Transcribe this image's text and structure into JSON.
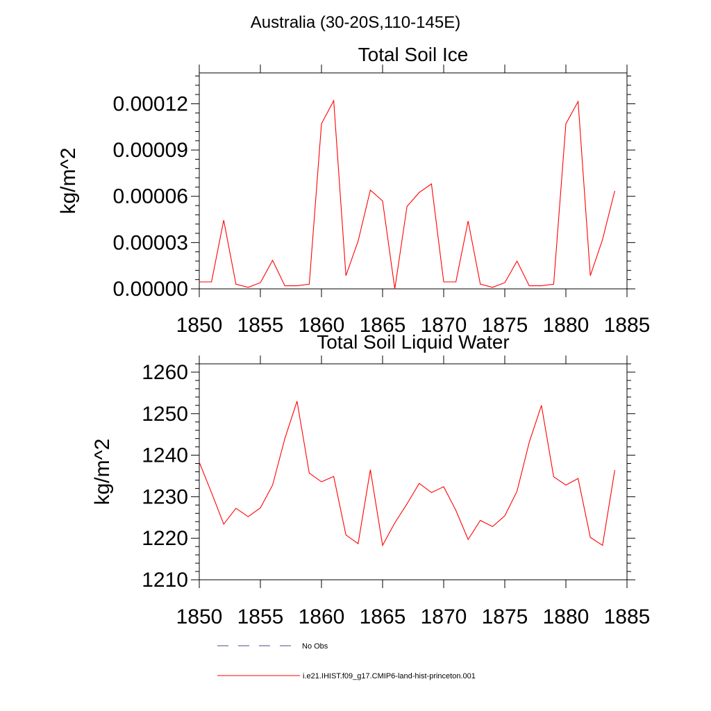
{
  "figure": {
    "title": "Australia (30-20S,110-145E)"
  },
  "chart_data": [
    {
      "type": "line",
      "title": "Total Soil Ice",
      "ylabel": "kg/m^2",
      "xlabel": "",
      "xlim": [
        1850,
        1885
      ],
      "ylim": [
        0,
        0.00014
      ],
      "xticks": [
        1850,
        1855,
        1860,
        1865,
        1870,
        1875,
        1880,
        1885
      ],
      "xtick_labels": [
        "1850",
        "1855",
        "1860",
        "1865",
        "1870",
        "1875",
        "1880",
        "1885"
      ],
      "yticks": [
        0,
        3e-05,
        6e-05,
        9e-05,
        0.00012
      ],
      "ytick_labels": [
        "0.00000",
        "0.00003",
        "0.00006",
        "0.00009",
        "0.00012"
      ],
      "grid": false,
      "series": [
        {
          "name": "i.e21.IHIST.f09_g17.CMIP6-land-hist-princeton.001",
          "color": "#ff0000",
          "x": [
            1850,
            1851,
            1852,
            1853,
            1854,
            1855,
            1856,
            1857,
            1858,
            1859,
            1860,
            1861,
            1862,
            1863,
            1864,
            1865,
            1866,
            1867,
            1868,
            1869,
            1870,
            1871,
            1872,
            1873,
            1874,
            1875,
            1876,
            1877,
            1878,
            1879,
            1880,
            1881,
            1882,
            1883,
            1884
          ],
          "y": [
            4.5e-06,
            4.5e-06,
            4.45e-05,
            3e-06,
            1e-06,
            4e-06,
            1.85e-05,
            2e-06,
            2e-06,
            3e-06,
            0.000107,
            0.000122,
            8.5e-06,
            3.1e-05,
            6.4e-05,
            5.7e-05,
            0.0,
            5.35e-05,
            6.25e-05,
            6.8e-05,
            4.5e-06,
            4.5e-06,
            4.4e-05,
            3e-06,
            1e-06,
            4e-06,
            1.8e-05,
            2e-06,
            2e-06,
            3e-06,
            0.000107,
            0.0001215,
            8.5e-06,
            3.2e-05,
            6.35e-05
          ]
        }
      ]
    },
    {
      "type": "line",
      "title": "Total Soil Liquid Water",
      "ylabel": "kg/m^2",
      "xlabel": "",
      "xlim": [
        1850,
        1885
      ],
      "ylim": [
        1210,
        1262
      ],
      "xticks": [
        1850,
        1855,
        1860,
        1865,
        1870,
        1875,
        1880,
        1885
      ],
      "xtick_labels": [
        "1850",
        "1855",
        "1860",
        "1865",
        "1870",
        "1875",
        "1880",
        "1885"
      ],
      "yticks": [
        1210,
        1220,
        1230,
        1240,
        1250,
        1260
      ],
      "ytick_labels": [
        "1210",
        "1220",
        "1230",
        "1240",
        "1250",
        "1260"
      ],
      "grid": false,
      "series": [
        {
          "name": "i.e21.IHIST.f09_g17.CMIP6-land-hist-princeton.001",
          "color": "#ff0000",
          "x": [
            1850,
            1851,
            1852,
            1853,
            1854,
            1855,
            1856,
            1857,
            1858,
            1859,
            1860,
            1861,
            1862,
            1863,
            1864,
            1865,
            1866,
            1867,
            1868,
            1869,
            1870,
            1871,
            1872,
            1873,
            1874,
            1875,
            1876,
            1877,
            1878,
            1879,
            1880,
            1881,
            1882,
            1883,
            1884
          ],
          "y": [
            1238.3,
            1231.0,
            1223.4,
            1227.2,
            1225.2,
            1227.3,
            1232.8,
            1244.0,
            1253.0,
            1235.7,
            1233.6,
            1234.9,
            1220.8,
            1218.7,
            1236.5,
            1218.3,
            1223.7,
            1228.3,
            1233.2,
            1231.0,
            1232.4,
            1226.7,
            1219.7,
            1224.3,
            1222.8,
            1225.4,
            1231.3,
            1243.1,
            1252.0,
            1234.8,
            1232.8,
            1234.4,
            1220.2,
            1218.3,
            1236.4
          ]
        }
      ]
    }
  ],
  "legend": {
    "position": "bottom-left",
    "entries": [
      {
        "label": "No Obs",
        "color": "#4a4a8c",
        "style": "dashed"
      },
      {
        "label": "i.e21.IHIST.f09_g17.CMIP6-land-hist-princeton.001",
        "color": "#ff0000",
        "style": "solid"
      }
    ]
  }
}
